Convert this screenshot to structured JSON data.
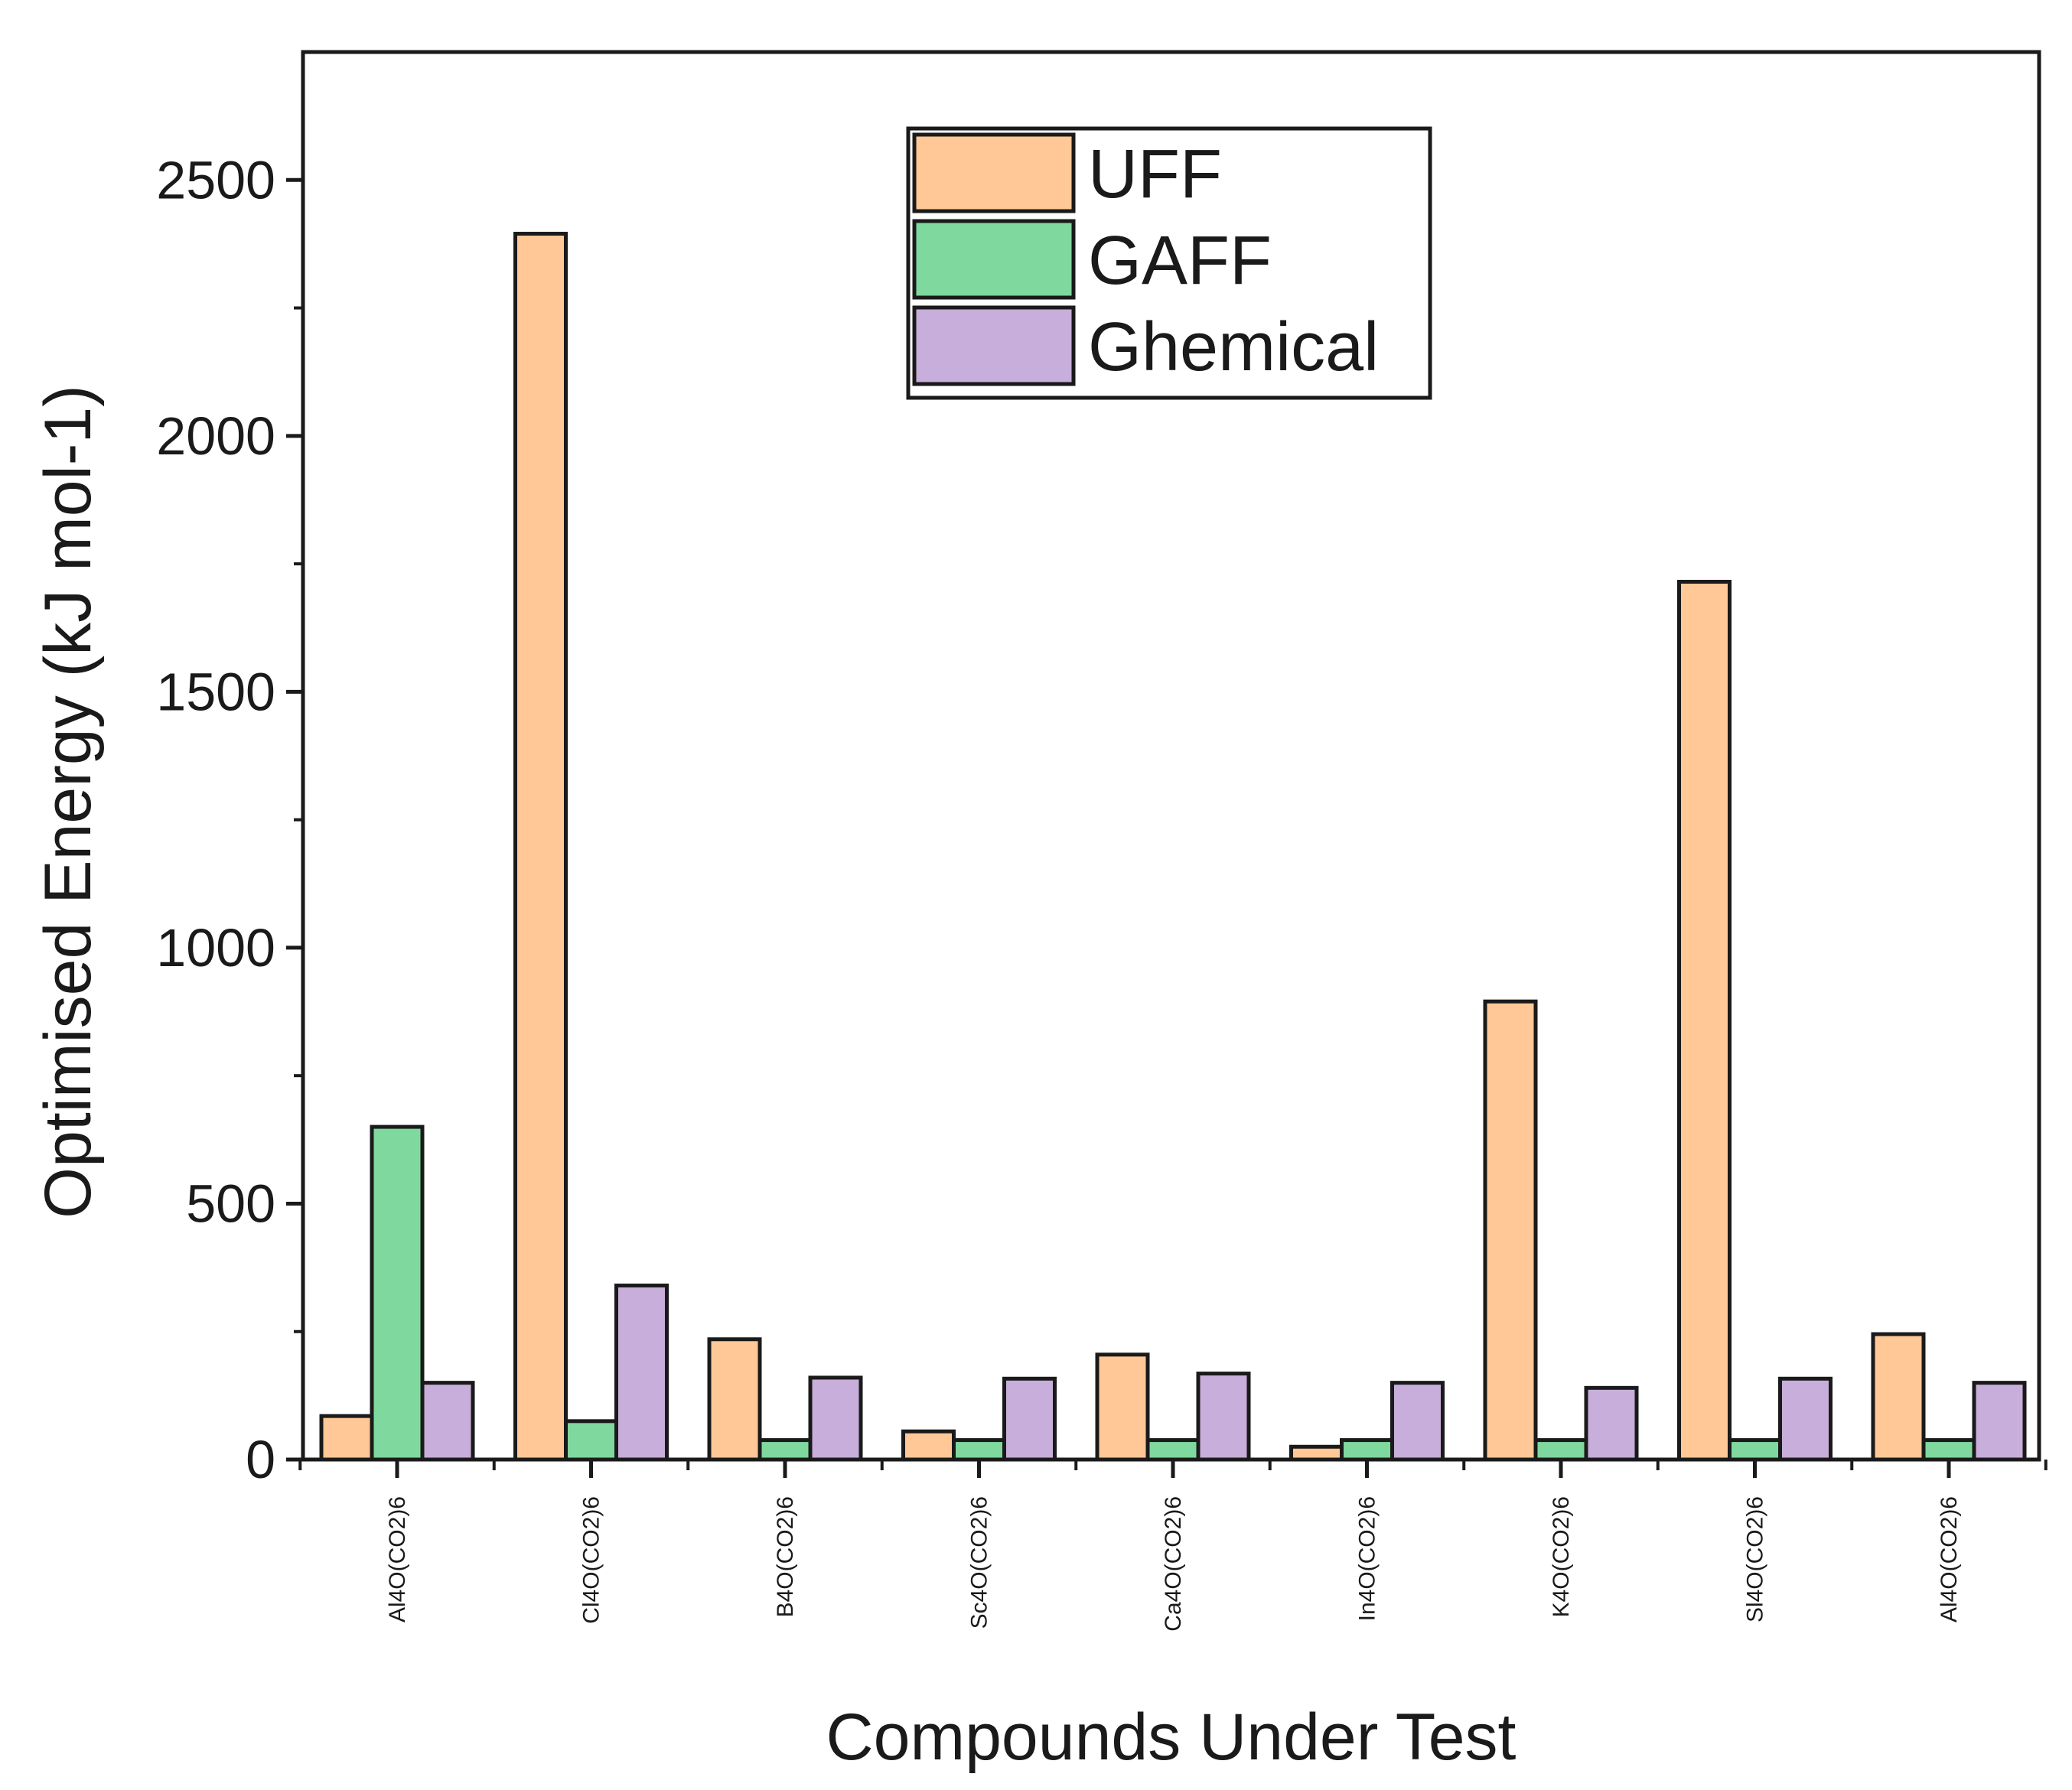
{
  "chart_data": {
    "type": "bar",
    "xlabel": "Compounds Under Test",
    "ylabel": "Optimised Energy (kJ mol-1)",
    "ylim": [
      0,
      2750
    ],
    "yticks": [
      0,
      500,
      1000,
      1500,
      2000,
      2500
    ],
    "grid": false,
    "legend_position": "top-center",
    "categories": [
      "Al4O(CO2)6",
      "Cl4O(CO2)6",
      "B4O(CO2)6",
      "Sc4O(CO2)6",
      "Ca4O(CO2)6",
      "In4O(CO2)6",
      "K4O(CO2)6",
      "Sl4O(CO2)6",
      "Al4O(CO2)6"
    ],
    "series": [
      {
        "name": "UFF",
        "color": "#FFC896",
        "values": [
          85,
          2395,
          235,
          55,
          205,
          25,
          895,
          1715,
          245
        ]
      },
      {
        "name": "GAFF",
        "color": "#7FD99E",
        "values": [
          650,
          75,
          38,
          38,
          38,
          38,
          38,
          38,
          38
        ]
      },
      {
        "name": "Ghemical",
        "color": "#C8AEDA",
        "values": [
          150,
          340,
          160,
          158,
          168,
          150,
          140,
          158,
          150
        ]
      }
    ]
  }
}
